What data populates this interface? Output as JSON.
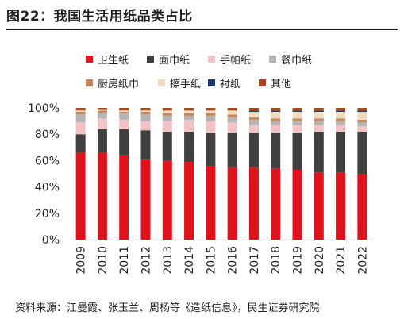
{
  "title": "图22：我国生活用纸品类占比",
  "source": "资料来源：江曼霞、张玉兰、周杨等《造纸信息》，民生证券研究院",
  "chart_data": {
    "type": "bar",
    "stacked": true,
    "categories": [
      "2009",
      "2010",
      "2011",
      "2012",
      "2013",
      "2014",
      "2015",
      "2016",
      "2017",
      "2018",
      "2019",
      "2020",
      "2021",
      "2022"
    ],
    "ylim": [
      0,
      100
    ],
    "yticks": [
      "0%",
      "20%",
      "40%",
      "60%",
      "80%",
      "100%"
    ],
    "legend_position": "top",
    "series": [
      {
        "name": "卫生纸",
        "color": "#e0121c",
        "values": [
          66,
          66,
          64,
          61,
          60,
          59,
          56,
          55,
          55,
          54,
          53,
          51,
          51,
          50
        ]
      },
      {
        "name": "面巾纸",
        "color": "#404040",
        "values": [
          14,
          18,
          20,
          22,
          22,
          23,
          25,
          26,
          26,
          27,
          28,
          31,
          31,
          32
        ]
      },
      {
        "name": "手帕纸",
        "color": "#f3c2c4",
        "values": [
          9,
          8,
          7,
          7,
          8,
          9,
          9,
          8,
          6,
          6,
          6,
          5,
          5,
          4
        ]
      },
      {
        "name": "餐巾纸",
        "color": "#b5b5b5",
        "values": [
          6,
          4,
          5,
          5,
          4,
          3,
          4,
          4,
          4,
          3,
          3,
          3,
          3,
          3
        ]
      },
      {
        "name": "厨房纸巾",
        "color": "#c8885e",
        "values": [
          2,
          2,
          1,
          2,
          2,
          2,
          2,
          2,
          2,
          2,
          2,
          2,
          2,
          2
        ]
      },
      {
        "name": "擦手纸",
        "color": "#f1dcc0",
        "values": [
          1,
          1,
          1,
          1,
          2,
          2,
          2,
          3,
          4,
          5,
          5,
          5,
          5,
          6
        ]
      },
      {
        "name": "衬纸",
        "color": "#1c3a70",
        "values": [
          0,
          0,
          0,
          0,
          0,
          0,
          0,
          0,
          1,
          1,
          1,
          1,
          1,
          1
        ]
      },
      {
        "name": "其他",
        "color": "#a64b1d",
        "values": [
          2,
          1,
          2,
          2,
          2,
          2,
          2,
          2,
          2,
          2,
          2,
          2,
          2,
          2
        ]
      }
    ]
  }
}
